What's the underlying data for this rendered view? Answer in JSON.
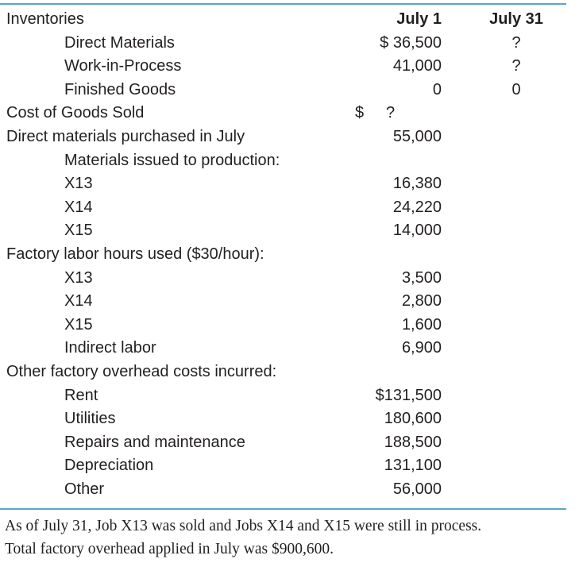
{
  "header": {
    "label": "Inventories",
    "col1": "July 1",
    "col2": "July 31"
  },
  "inventories": [
    {
      "label": "Direct Materials",
      "july1": "$ 36,500",
      "july31": "?"
    },
    {
      "label": "Work-in-Process",
      "july1": "41,000",
      "july31": "?"
    },
    {
      "label": "Finished Goods",
      "july1": "0",
      "july31": "0"
    }
  ],
  "cogs": {
    "label": "Cost of Goods Sold",
    "dollar": "$",
    "value": "?"
  },
  "dm_purchased": {
    "label": "Direct materials purchased in July",
    "value": "55,000"
  },
  "materials_issued": {
    "label": "Materials issued to production:",
    "items": [
      {
        "label": "X13",
        "value": "16,380"
      },
      {
        "label": "X14",
        "value": "24,220"
      },
      {
        "label": "X15",
        "value": "14,000"
      }
    ]
  },
  "labor": {
    "label": "Factory labor hours used ($30/hour):",
    "items": [
      {
        "label": "X13",
        "value": "3,500"
      },
      {
        "label": "X14",
        "value": "2,800"
      },
      {
        "label": "X15",
        "value": "1,600"
      },
      {
        "label": "Indirect labor",
        "value": "6,900"
      }
    ]
  },
  "overhead": {
    "label": "Other factory overhead costs incurred:",
    "items": [
      {
        "label": "Rent",
        "value": "$131,500"
      },
      {
        "label": "Utilities",
        "value": "180,600"
      },
      {
        "label": "Repairs and maintenance",
        "value": "188,500"
      },
      {
        "label": "Depreciation",
        "value": "131,100"
      },
      {
        "label": "Other",
        "value": "56,000"
      }
    ]
  },
  "note": {
    "line1": "As of July 31, Job X13 was sold and Jobs X14 and X15 were still in process.",
    "line2": "Total factory overhead applied in July was $900,600."
  },
  "colors": {
    "rule": "#5aa6c8",
    "text": "#231f20"
  }
}
